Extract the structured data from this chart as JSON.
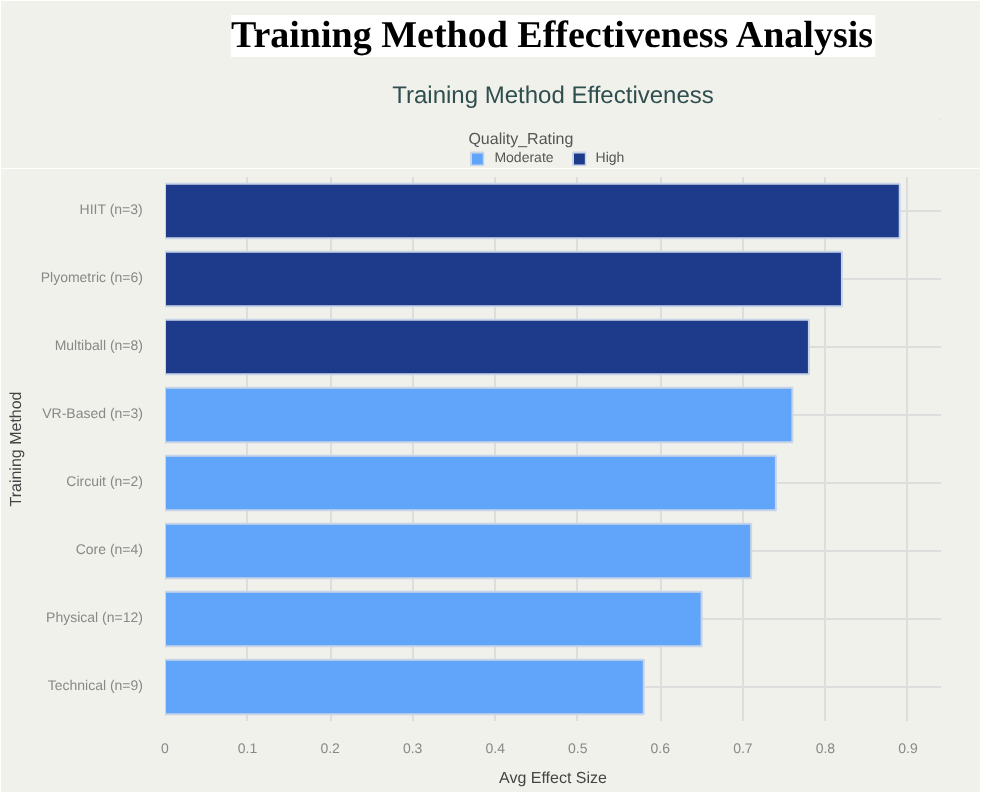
{
  "chart_data": {
    "type": "bar",
    "orientation": "horizontal",
    "title": "Training Method Effectiveness Analysis",
    "subtitle": "Training Method Effectiveness",
    "xlabel": "Avg Effect Size",
    "ylabel": "Training Method",
    "legend_title": "Quality_Rating",
    "legend": "top",
    "categories": [
      "HIIT (n=3)",
      "Plyometric (n=6)",
      "Multiball (n=8)",
      "VR-Based (n=3)",
      "Circuit (n=2)",
      "Core (n=4)",
      "Physical (n=12)",
      "Technical (n=9)"
    ],
    "series": [
      {
        "name": "Moderate",
        "color": "#60a5fa",
        "values": [
          null,
          null,
          null,
          0.76,
          0.74,
          0.71,
          0.65,
          0.58
        ]
      },
      {
        "name": "High",
        "color": "#1e3a8a",
        "values": [
          0.89,
          0.82,
          0.78,
          null,
          null,
          null,
          null,
          null
        ]
      }
    ],
    "xlim": [
      0,
      0.94
    ],
    "xticks": [
      0,
      0.1,
      0.2,
      0.3,
      0.4,
      0.5,
      0.6,
      0.7,
      0.8,
      0.9
    ],
    "grid": true
  }
}
